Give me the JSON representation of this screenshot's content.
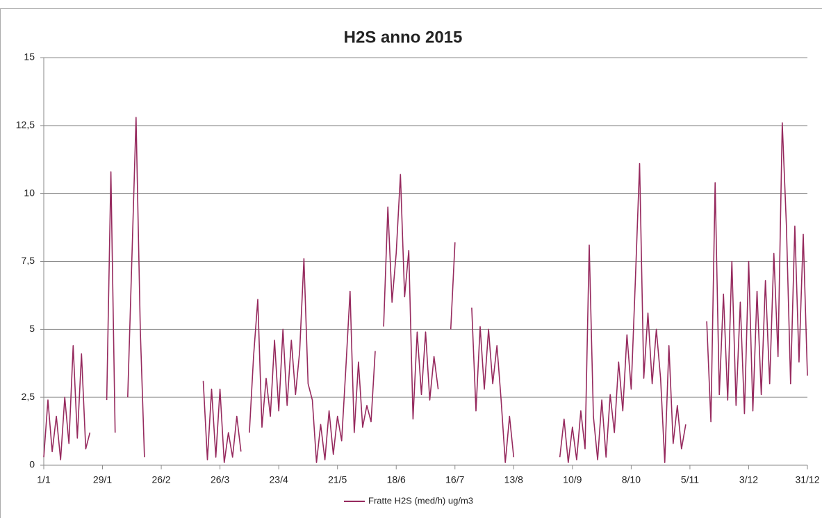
{
  "chart_data": {
    "type": "line",
    "title": "H2S anno 2015",
    "x": [
      0,
      2,
      4,
      6,
      8,
      10,
      12,
      14,
      16,
      18,
      20,
      22,
      24,
      26,
      28,
      30,
      32,
      34,
      36,
      38,
      40,
      42,
      44,
      46,
      48,
      50,
      52,
      54,
      56,
      58,
      60,
      62,
      64,
      66,
      68,
      70,
      72,
      74,
      76,
      78,
      80,
      82,
      84,
      86,
      88,
      90,
      92,
      94,
      96,
      98,
      100,
      102,
      104,
      106,
      108,
      110,
      112,
      114,
      116,
      118,
      120,
      122,
      124,
      126,
      128,
      130,
      132,
      134,
      136,
      138,
      140,
      142,
      144,
      146,
      148,
      150,
      152,
      154,
      156,
      158,
      160,
      162,
      164,
      166,
      168,
      170,
      172,
      174,
      176,
      178,
      180,
      182,
      184,
      186,
      188,
      190,
      192,
      194,
      196,
      198,
      200,
      202,
      204,
      206,
      208,
      210,
      212,
      214,
      216,
      218,
      220,
      222,
      224,
      226,
      228,
      230,
      232,
      234,
      236,
      238,
      240,
      242,
      244,
      246,
      248,
      250,
      252,
      254,
      256,
      258,
      260,
      262,
      264,
      266,
      268,
      270,
      272,
      274,
      276,
      278,
      280,
      282,
      284,
      286,
      288,
      290,
      292,
      294,
      296,
      298,
      300,
      302,
      304,
      306,
      308,
      310,
      312,
      314,
      316,
      318,
      320,
      322,
      324,
      326,
      328,
      330,
      332,
      334,
      336,
      338,
      340,
      342,
      344,
      346,
      348,
      350,
      352,
      354,
      356,
      358,
      360,
      362,
      364
    ],
    "series": [
      {
        "name": "Fratte H2S (med/h) ug/m3",
        "color": "#962a5e",
        "values": [
          0.3,
          2.4,
          0.5,
          1.8,
          0.2,
          2.5,
          0.8,
          4.4,
          1.0,
          4.1,
          0.6,
          1.2,
          null,
          null,
          null,
          2.4,
          10.8,
          1.2,
          null,
          null,
          2.5,
          7.6,
          12.8,
          5.0,
          0.3,
          null,
          null,
          null,
          null,
          null,
          null,
          null,
          null,
          null,
          null,
          null,
          null,
          null,
          3.1,
          0.2,
          2.8,
          0.3,
          2.8,
          0.1,
          1.2,
          0.3,
          1.8,
          0.5,
          null,
          1.2,
          4.0,
          6.1,
          1.4,
          3.2,
          1.8,
          4.6,
          2.0,
          5.0,
          2.2,
          4.6,
          2.6,
          4.2,
          7.6,
          3.0,
          2.4,
          0.1,
          1.5,
          0.2,
          2.0,
          0.4,
          1.8,
          0.9,
          3.6,
          6.4,
          1.2,
          3.8,
          1.4,
          2.2,
          1.6,
          4.2,
          null,
          5.1,
          9.5,
          6.0,
          7.8,
          10.7,
          6.2,
          7.9,
          1.7,
          4.9,
          2.6,
          4.9,
          2.4,
          4.0,
          2.8,
          null,
          null,
          5.0,
          8.2,
          null,
          null,
          null,
          5.8,
          2.0,
          5.1,
          2.8,
          5.0,
          3.0,
          4.4,
          2.4,
          0.1,
          1.8,
          0.3,
          null,
          null,
          null,
          null,
          null,
          null,
          null,
          null,
          null,
          null,
          0.3,
          1.7,
          0.1,
          1.4,
          0.2,
          2.0,
          0.6,
          8.1,
          1.8,
          0.2,
          2.4,
          0.3,
          2.6,
          1.2,
          3.8,
          2.0,
          4.8,
          2.8,
          6.8,
          11.1,
          3.2,
          5.6,
          3.0,
          5.0,
          3.2,
          0.1,
          4.4,
          0.8,
          2.2,
          0.6,
          1.5,
          null,
          null,
          null,
          null,
          5.3,
          1.6,
          10.4,
          2.6,
          6.3,
          2.4,
          7.5,
          2.2,
          6.0,
          1.9,
          7.5,
          2.0,
          6.4,
          2.6,
          6.8,
          3.0,
          7.8,
          4.0,
          12.6,
          8.8,
          3.0,
          8.8,
          3.8,
          8.5,
          3.3
        ]
      }
    ],
    "xlim": [
      0,
      364
    ],
    "xticks": [
      {
        "value": 0,
        "label": "1/1"
      },
      {
        "value": 28,
        "label": "29/1"
      },
      {
        "value": 56,
        "label": "26/2"
      },
      {
        "value": 84,
        "label": "26/3"
      },
      {
        "value": 112,
        "label": "23/4"
      },
      {
        "value": 140,
        "label": "21/5"
      },
      {
        "value": 168,
        "label": "18/6"
      },
      {
        "value": 196,
        "label": "16/7"
      },
      {
        "value": 224,
        "label": "13/8"
      },
      {
        "value": 252,
        "label": "10/9"
      },
      {
        "value": 280,
        "label": "8/10"
      },
      {
        "value": 308,
        "label": "5/11"
      },
      {
        "value": 336,
        "label": "3/12"
      },
      {
        "value": 364,
        "label": "31/12"
      }
    ],
    "ylim": [
      0,
      15
    ],
    "yticks": [
      0,
      {
        "value": 2.5,
        "label": "2,5"
      },
      5,
      {
        "value": 7.5,
        "label": "7,5"
      },
      10,
      {
        "value": 12.5,
        "label": "12,5"
      },
      15
    ],
    "grid": true,
    "legend": "bottom"
  }
}
